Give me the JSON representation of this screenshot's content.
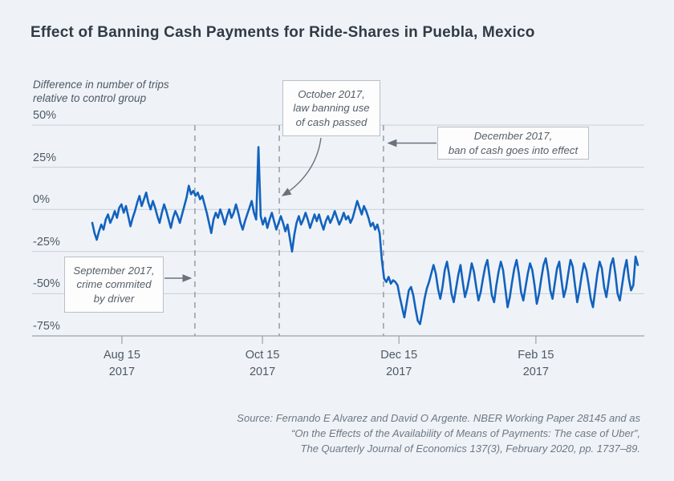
{
  "title": "Effect of Banning Cash Payments for Ride-Shares in Puebla, Mexico",
  "colors": {
    "background": "#eff3f8",
    "line": "#1362be",
    "gridline": "#c7cfd6",
    "axis": "#99a2ab",
    "dashed_event_line": "#9aa3ac",
    "arrow": "#6a737c",
    "text_dark": "#313b44",
    "text_axis": "#4e5963",
    "annotation_text": "#545e67",
    "source_text": "#6e7883"
  },
  "source": {
    "lines": [
      "Source: Fernando E Alvarez and David O Argente. NBER Working Paper 28145 and as",
      "“On the Effects of the Availability of Means of Payments: The case of Uber”,",
      "The Quarterly Journal of Economics 137(3), February 2020, pp. 1737–89."
    ]
  },
  "chart_data": {
    "type": "line",
    "title": "Effect of Banning Cash Payments for Ride-Shares in Puebla, Mexico",
    "ylabel_note": [
      "Difference in number of trips",
      "relative to control group"
    ],
    "unit": "%",
    "ylim": [
      -75,
      50
    ],
    "grid": "horizontal",
    "legend": "none",
    "y_ticks": [
      {
        "label": "50%",
        "value": 50
      },
      {
        "label": "25%",
        "value": 25
      },
      {
        "label": "0%",
        "value": 0
      },
      {
        "label": "-25%",
        "value": -25
      },
      {
        "label": "-50%",
        "value": -50
      },
      {
        "label": "-75%",
        "value": -75
      }
    ],
    "x_ticks": [
      {
        "label": "Aug 15",
        "sublabel": "2017",
        "day": 13.2
      },
      {
        "label": "Oct 15",
        "sublabel": "2017",
        "day": 75.8
      },
      {
        "label": "Dec 15",
        "sublabel": "2017",
        "day": 136.6
      },
      {
        "label": "Feb 15",
        "sublabel": "2017",
        "day": 197.6
      }
    ],
    "events": [
      {
        "id": "september",
        "day": 45.7,
        "lines": [
          "September 2017,",
          "crime commited",
          "by driver"
        ]
      },
      {
        "id": "october",
        "day": 83.3,
        "lines": [
          "October 2017,",
          "law banning use",
          "of cash passed"
        ]
      },
      {
        "id": "december",
        "day": 129.7,
        "lines": [
          "December 2017,",
          "ban of cash goes into effect"
        ]
      }
    ],
    "series": [
      {
        "name": "Difference in number of trips relative to control group (%)",
        "x_unit": "day_index",
        "values": [
          -8,
          -14,
          -18,
          -13,
          -9,
          -12,
          -6,
          -3,
          -8,
          -5,
          -1,
          -5,
          1,
          3,
          -2,
          2,
          -4,
          -10,
          -5,
          -1,
          4,
          8,
          2,
          6,
          10,
          4,
          0,
          5,
          1,
          -4,
          -8,
          -2,
          3,
          -1,
          -6,
          -11,
          -5,
          -1,
          -4,
          -8,
          -3,
          2,
          7,
          14,
          9,
          11,
          8,
          10,
          6,
          8,
          3,
          -2,
          -8,
          -14,
          -6,
          -2,
          -5,
          0,
          -4,
          -9,
          -4,
          0,
          -5,
          -2,
          3,
          -2,
          -8,
          -12,
          -7,
          -3,
          1,
          5,
          -2,
          -6,
          37,
          -4,
          -9,
          -5,
          -11,
          -6,
          -2,
          -7,
          -12,
          -8,
          -4,
          -8,
          -13,
          -9,
          -17,
          -25,
          -15,
          -8,
          -4,
          -9,
          -6,
          -2,
          -6,
          -11,
          -7,
          -3,
          -7,
          -3,
          -8,
          -12,
          -7,
          -4,
          -8,
          -5,
          -1,
          -5,
          -9,
          -6,
          -2,
          -6,
          -4,
          -8,
          -5,
          0,
          5,
          1,
          -3,
          2,
          -1,
          -5,
          -10,
          -8,
          -12,
          -9,
          -14,
          -30,
          -41,
          -43,
          -40,
          -44,
          -42,
          -43,
          -45,
          -52,
          -58,
          -64,
          -56,
          -48,
          -46,
          -51,
          -59,
          -66,
          -68,
          -61,
          -53,
          -47,
          -43,
          -38,
          -33,
          -38,
          -47,
          -53,
          -46,
          -36,
          -31,
          -39,
          -50,
          -55,
          -47,
          -39,
          -33,
          -43,
          -52,
          -47,
          -40,
          -32,
          -37,
          -46,
          -54,
          -49,
          -41,
          -34,
          -30,
          -40,
          -51,
          -55,
          -45,
          -37,
          -31,
          -36,
          -47,
          -58,
          -52,
          -43,
          -35,
          -30,
          -38,
          -49,
          -54,
          -46,
          -38,
          -32,
          -36,
          -45,
          -56,
          -50,
          -41,
          -33,
          -29,
          -37,
          -48,
          -53,
          -44,
          -35,
          -31,
          -42,
          -52,
          -47,
          -38,
          -30,
          -34,
          -45,
          -55,
          -48,
          -39,
          -32,
          -36,
          -44,
          -53,
          -58,
          -48,
          -38,
          -31,
          -35,
          -46,
          -52,
          -43,
          -33,
          -29,
          -38,
          -50,
          -54,
          -45,
          -36,
          -30,
          -41,
          -48,
          -45,
          -28,
          -33
        ]
      }
    ]
  }
}
